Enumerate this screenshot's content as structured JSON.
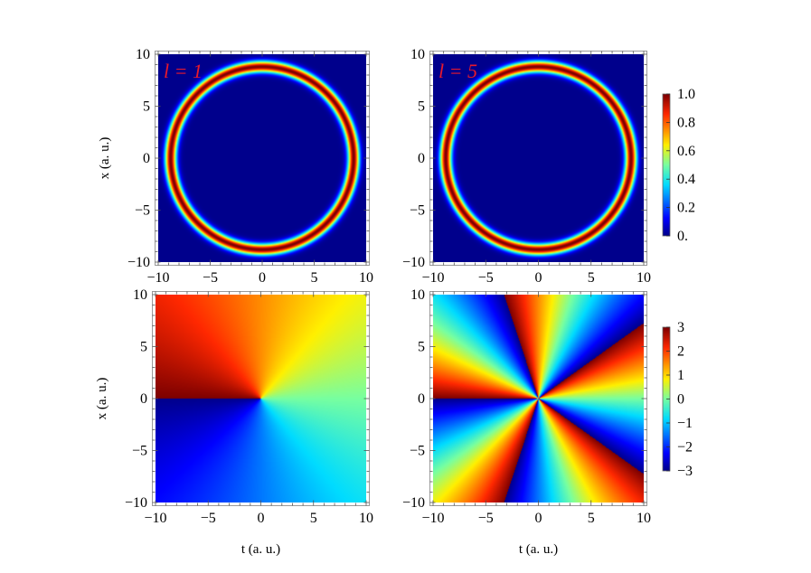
{
  "chart_data": [
    {
      "type": "heatmap",
      "panel": "intensity-l1",
      "annotation": "l = 1",
      "ylabel": "x (a. u.)",
      "xlabel": "",
      "xlim": [
        -10,
        10
      ],
      "ylim": [
        -10,
        10
      ],
      "xticks": [
        "−10",
        "−5",
        "0",
        "5",
        "10"
      ],
      "yticks": [
        "−10",
        "−5",
        "0",
        "5",
        "10"
      ],
      "ring_radius": 8.8,
      "ring_width": 0.55,
      "colorscale": "rainbow-jet",
      "colorbar": "intensity"
    },
    {
      "type": "heatmap",
      "panel": "intensity-l5",
      "annotation": "l = 5",
      "ylabel": "",
      "xlabel": "",
      "xlim": [
        -10,
        10
      ],
      "ylim": [
        -10,
        10
      ],
      "xticks": [
        "−10",
        "−5",
        "0",
        "5",
        "10"
      ],
      "yticks": [
        "−10",
        "−5",
        "0",
        "5",
        "10"
      ],
      "ring_radius": 8.8,
      "ring_width": 0.55,
      "colorscale": "rainbow-jet",
      "colorbar": "intensity"
    },
    {
      "type": "heatmap",
      "panel": "phase-l1",
      "annotation": "",
      "ylabel": "x (a. u.)",
      "xlabel": "t (a. u.)",
      "xlim": [
        -10,
        10
      ],
      "ylim": [
        -10,
        10
      ],
      "xticks": [
        "−10",
        "−5",
        "0",
        "5",
        "10"
      ],
      "yticks": [
        "−10",
        "−5",
        "0",
        "5",
        "10"
      ],
      "charge": 1,
      "colorscale": "rainbow-jet",
      "colorbar": "phase"
    },
    {
      "type": "heatmap",
      "panel": "phase-l5",
      "annotation": "",
      "ylabel": "",
      "xlabel": "t (a. u.)",
      "xlim": [
        -10,
        10
      ],
      "ylim": [
        -10,
        10
      ],
      "xticks": [
        "−10",
        "−5",
        "0",
        "5",
        "10"
      ],
      "yticks": [
        "−10",
        "−5",
        "0",
        "5",
        "10"
      ],
      "charge": 5,
      "colorscale": "rainbow-jet",
      "colorbar": "phase"
    }
  ],
  "colorbars": {
    "intensity": {
      "range": [
        0,
        1
      ],
      "ticks": [
        "1.0",
        "0.8",
        "0.6",
        "0.4",
        "0.2",
        "0."
      ]
    },
    "phase": {
      "range": [
        -3.14,
        3.14
      ],
      "ticks": [
        "3",
        "2",
        "1",
        "0",
        "−1",
        "−2",
        "−3"
      ]
    }
  },
  "colors": {
    "frame": "#9a9a9a",
    "annotation": "#e8192c"
  }
}
